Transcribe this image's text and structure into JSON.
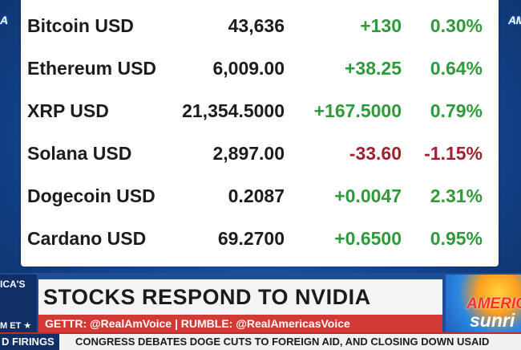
{
  "crypto_table": {
    "rows": [
      {
        "name": "Bitcoin USD",
        "price": "43,636",
        "change": "+130",
        "pct": "0.30%",
        "direction": "up"
      },
      {
        "name": "Ethereum USD",
        "price": "6,009.00",
        "change": "+38.25",
        "pct": "0.64%",
        "direction": "up"
      },
      {
        "name": "XRP USD",
        "price": "21,354.5000",
        "change": "+167.5000",
        "pct": "0.79%",
        "direction": "up"
      },
      {
        "name": "Solana USD",
        "price": "2,897.00",
        "change": "-33.60",
        "pct": "-1.15%",
        "direction": "down"
      },
      {
        "name": "Dogecoin USD",
        "price": "0.2087",
        "change": "+0.0047",
        "pct": "2.31%",
        "direction": "up"
      },
      {
        "name": "Cardano USD",
        "price": "69.2700",
        "change": "+0.6500",
        "pct": "0.95%",
        "direction": "up"
      }
    ],
    "colors": {
      "up": "#2f9a3a",
      "down": "#a0212f"
    }
  },
  "lower_third": {
    "left_logo_top": "ICA'S",
    "left_logo_bottom": "M ET ★",
    "headline": "STOCKS RESPOND TO NVIDIA",
    "social": "GETTR: @RealAmVoice | RUMBLE: @RealAmericasVoice",
    "brand_top": "AMERIC",
    "brand_bottom": "sunri"
  },
  "ticker": {
    "left": "D FIRINGS",
    "text": "CONGRESS DEBATES DOGE CUTS TO FOREIGN AID, AND CLOSING DOWN USAID"
  },
  "edge_logos": {
    "left": "A",
    "right": "AM"
  },
  "colors": {
    "headline_bg": "#f4f4f6",
    "social_bg": "#d23a36",
    "ticker_border": "#c22a2a",
    "banner_blue": "#1f4e97"
  }
}
